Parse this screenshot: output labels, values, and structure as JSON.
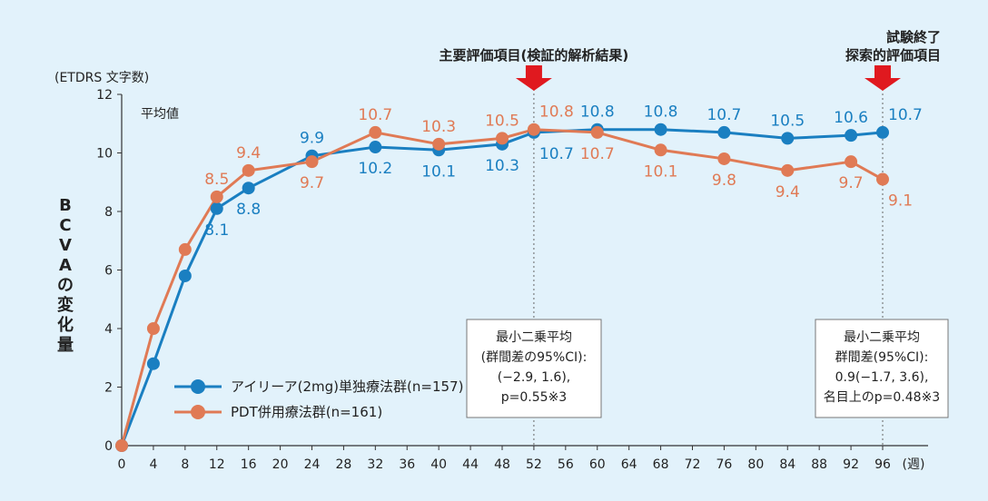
{
  "chart_data": {
    "type": "line",
    "unit_label": "(ETDRS 文字数)",
    "ylabel": "BCVAの変化量",
    "stat_label": "平均値",
    "xlabel": "(週)",
    "ylim": [
      0,
      12
    ],
    "yticks": [
      0,
      2,
      4,
      6,
      8,
      10,
      12
    ],
    "xlim": [
      0,
      96
    ],
    "xticks": [
      0,
      4,
      8,
      12,
      16,
      20,
      24,
      28,
      32,
      36,
      40,
      44,
      48,
      52,
      56,
      60,
      64,
      68,
      72,
      76,
      80,
      84,
      88,
      92,
      96
    ],
    "series": [
      {
        "name": "アイリーア(2mg)単独療法群(n=157)",
        "color": "#1a7fc1",
        "x": [
          0,
          4,
          8,
          12,
          16,
          24,
          32,
          40,
          48,
          52,
          60,
          68,
          76,
          84,
          92,
          96
        ],
        "values": [
          0,
          2.8,
          5.8,
          8.1,
          8.8,
          9.9,
          10.2,
          10.1,
          10.3,
          10.7,
          10.8,
          10.8,
          10.7,
          10.5,
          10.6,
          10.7
        ],
        "labels": [
          {
            "x": 12,
            "text": "8.1",
            "pos": "below"
          },
          {
            "x": 16,
            "text": "8.8",
            "pos": "below"
          },
          {
            "x": 24,
            "text": "9.9",
            "pos": "above"
          },
          {
            "x": 32,
            "text": "10.2",
            "pos": "below"
          },
          {
            "x": 40,
            "text": "10.1",
            "pos": "below"
          },
          {
            "x": 48,
            "text": "10.3",
            "pos": "below"
          },
          {
            "x": 52,
            "text": "10.7",
            "pos": "below-right"
          },
          {
            "x": 60,
            "text": "10.8",
            "pos": "above"
          },
          {
            "x": 68,
            "text": "10.8",
            "pos": "above"
          },
          {
            "x": 76,
            "text": "10.7",
            "pos": "above"
          },
          {
            "x": 84,
            "text": "10.5",
            "pos": "above"
          },
          {
            "x": 92,
            "text": "10.6",
            "pos": "above"
          },
          {
            "x": 96,
            "text": "10.7",
            "pos": "above-right"
          }
        ]
      },
      {
        "name": "PDT併用療法群(n=161)",
        "color": "#e07a55",
        "x": [
          0,
          4,
          8,
          12,
          16,
          24,
          32,
          40,
          48,
          52,
          60,
          68,
          76,
          84,
          92,
          96
        ],
        "values": [
          0,
          4.0,
          6.7,
          8.5,
          9.4,
          9.7,
          10.7,
          10.3,
          10.5,
          10.8,
          10.7,
          10.1,
          9.8,
          9.4,
          9.7,
          9.1
        ],
        "labels": [
          {
            "x": 12,
            "text": "8.5",
            "pos": "above"
          },
          {
            "x": 16,
            "text": "9.4",
            "pos": "above"
          },
          {
            "x": 24,
            "text": "9.7",
            "pos": "below"
          },
          {
            "x": 32,
            "text": "10.7",
            "pos": "above"
          },
          {
            "x": 40,
            "text": "10.3",
            "pos": "above"
          },
          {
            "x": 48,
            "text": "10.5",
            "pos": "above"
          },
          {
            "x": 52,
            "text": "10.8",
            "pos": "above-right"
          },
          {
            "x": 60,
            "text": "10.7",
            "pos": "below"
          },
          {
            "x": 68,
            "text": "10.1",
            "pos": "below"
          },
          {
            "x": 76,
            "text": "9.8",
            "pos": "below"
          },
          {
            "x": 84,
            "text": "9.4",
            "pos": "below"
          },
          {
            "x": 92,
            "text": "9.7",
            "pos": "below"
          },
          {
            "x": 96,
            "text": "9.1",
            "pos": "below-right"
          }
        ]
      }
    ],
    "reference_lines": [
      {
        "x": 52,
        "header": [
          "主要評価項目(検証的解析結果)"
        ],
        "box": [
          "最小二乗平均",
          "(群間差の95%CI):",
          "(−2.9, 1.6),",
          "p=0.55※3"
        ]
      },
      {
        "x": 96,
        "header": [
          "試験終了",
          "探索的評価項目"
        ],
        "box": [
          "最小二乗平均",
          "群間差(95%CI):",
          "0.9(−1.7, 3.6),",
          "名目上のp=0.48※3"
        ]
      }
    ],
    "legend_position": "bottom-left",
    "arrow_color": "#e0191f"
  }
}
